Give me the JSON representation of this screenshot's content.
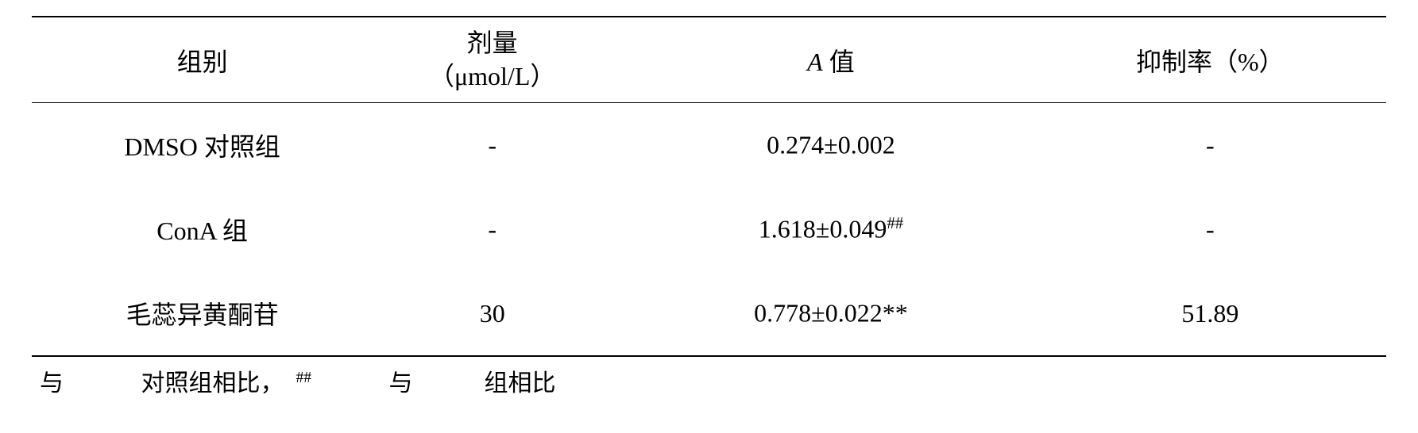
{
  "table": {
    "columns": {
      "group": "组别",
      "dose_line1": "剂量",
      "dose_line2": "（μmol/L）",
      "avalue_italic": "A",
      "avalue_rest": " 值",
      "rate": "抑制率（%）"
    },
    "rows": [
      {
        "group": "DMSO 对照组",
        "dose": "-",
        "avalue": "0.274±0.002",
        "avalue_sup": "",
        "rate": "-"
      },
      {
        "group": "ConA 组",
        "dose": "-",
        "avalue": "1.618±0.049",
        "avalue_sup": "##",
        "rate": "-"
      },
      {
        "group": "毛蕊异黄酮苷",
        "dose": "30",
        "avalue": "0.778±0.022**",
        "avalue_sup": "",
        "rate": "51.89"
      }
    ],
    "footnote_fragments": {
      "f1": "与",
      "f2": "对照组相比，",
      "f3": "##",
      "f4": "与",
      "f5": "组相比"
    }
  },
  "style": {
    "font_family": "Times New Roman, SimSun, serif",
    "font_size_pt": 32,
    "text_color": "#000000",
    "background_color": "#ffffff",
    "border_color": "#000000",
    "border_top_width": 2,
    "border_mid_width": 1.5,
    "border_bottom_width": 2
  }
}
